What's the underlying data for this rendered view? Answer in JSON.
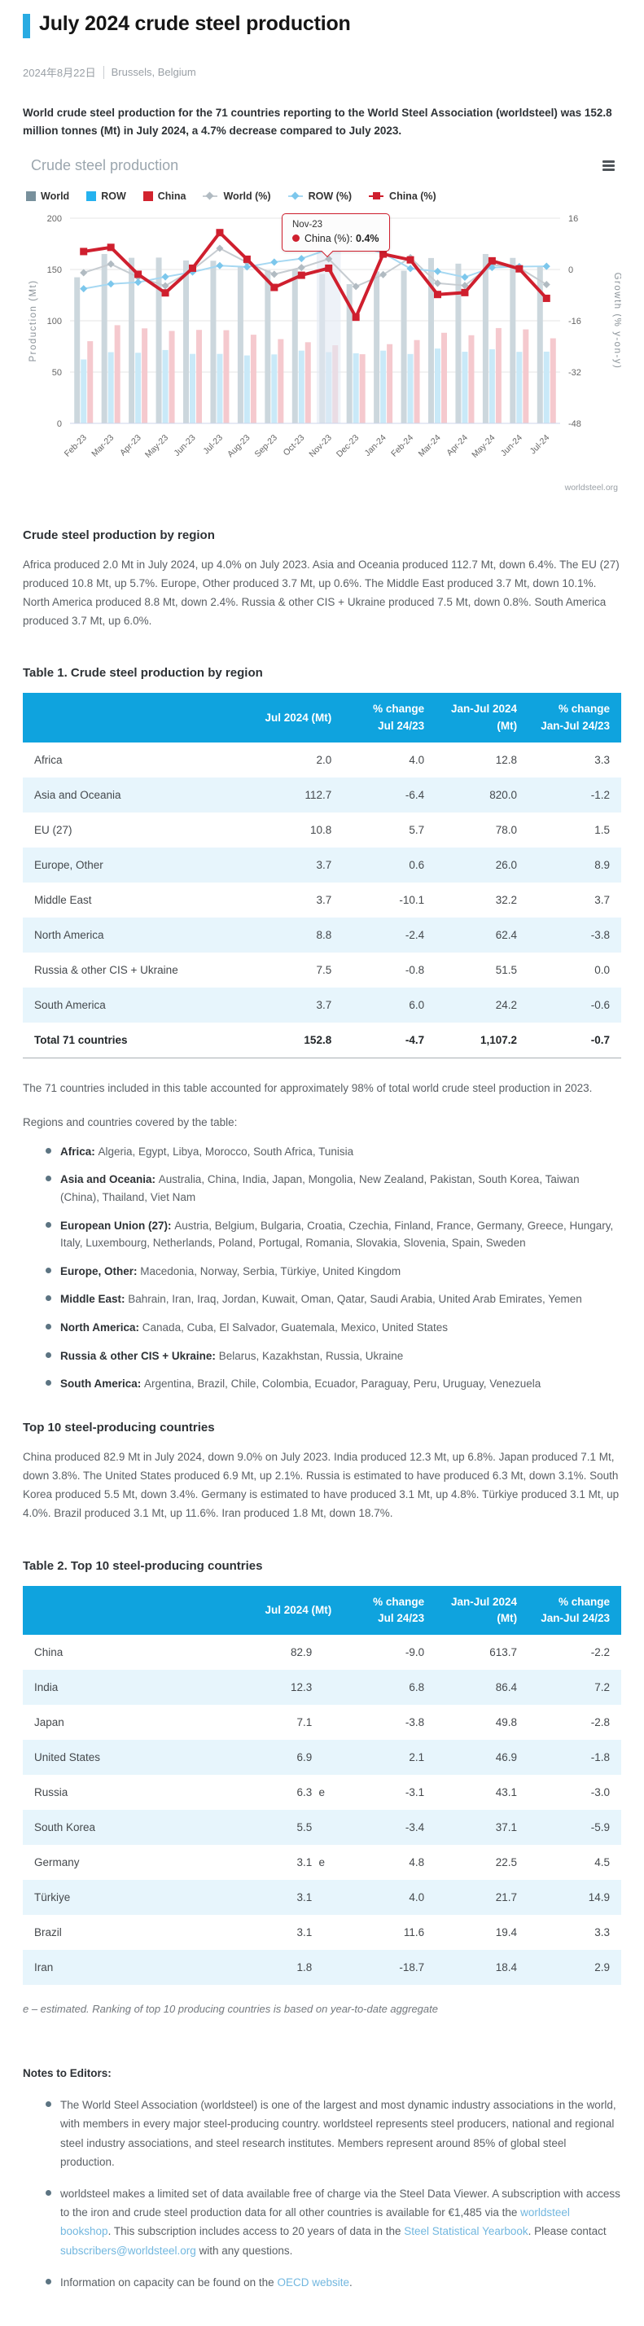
{
  "header": {
    "title": "July 2024 crude steel production",
    "date": "2024年8月22日",
    "location": "Brussels, Belgium",
    "accent_color": "#29abe2"
  },
  "intro": "World crude steel production for the 71 countries reporting to the World Steel Association (worldsteel) was 152.8 million tonnes (Mt) in July 2024, a 4.7% decrease compared to July 2023.",
  "chart_data": {
    "type": "combo-bar-line",
    "title": "Crude steel production",
    "x": [
      "Feb-23",
      "Mar-23",
      "Apr-23",
      "May-23",
      "Jun-23",
      "Jul-23",
      "Aug-23",
      "Sep-23",
      "Oct-23",
      "Nov-23",
      "Dec-23",
      "Jan-24",
      "Feb-24",
      "Mar-24",
      "Apr-24",
      "May-24",
      "Jun-24",
      "Jul-24"
    ],
    "series": [
      {
        "name": "World",
        "kind": "bar",
        "axis": "left",
        "color": "#78909c",
        "fill": "#ccd7dd",
        "values": [
          142.4,
          165.1,
          161.4,
          161.6,
          158.8,
          158.5,
          152.6,
          149.3,
          150.0,
          145.5,
          135.7,
          148.1,
          148.8,
          161.2,
          155.7,
          165.1,
          161.3,
          152.8
        ]
      },
      {
        "name": "ROW",
        "kind": "bar",
        "axis": "left",
        "color": "#25b2ef",
        "fill": "#c9e9f8",
        "values": [
          62.3,
          69.4,
          68.8,
          71.5,
          67.7,
          67.7,
          66.2,
          67.2,
          70.9,
          69.4,
          68.3,
          70.9,
          67.6,
          72.9,
          69.8,
          72.2,
          69.7,
          69.9
        ]
      },
      {
        "name": "China",
        "kind": "bar",
        "axis": "left",
        "color": "#d2232e",
        "fill": "#f5c9ce",
        "values": [
          80.1,
          95.7,
          92.6,
          90.1,
          91.1,
          90.8,
          86.4,
          82.1,
          79.1,
          76.1,
          67.4,
          77.2,
          81.2,
          88.3,
          85.9,
          92.9,
          91.6,
          82.9
        ]
      },
      {
        "name": "World (%)",
        "kind": "line",
        "axis": "right",
        "color": "#c6ccd1",
        "marker": "#b1bbc2",
        "marker_shape": "diamond",
        "width": 2,
        "values": [
          -1.0,
          1.7,
          -2.4,
          -5.1,
          -0.1,
          6.6,
          2.2,
          -1.5,
          0.6,
          3.3,
          -5.3,
          -1.6,
          3.7,
          -4.3,
          -5.0,
          1.5,
          0.5,
          -4.7
        ]
      },
      {
        "name": "ROW (%)",
        "kind": "line",
        "axis": "right",
        "color": "#a6d8f2",
        "marker": "#7cc7ec",
        "marker_shape": "diamond",
        "width": 2,
        "values": [
          -6.0,
          -4.5,
          -4.0,
          -2.3,
          -0.8,
          1.2,
          0.8,
          2.3,
          3.4,
          6.3,
          7.4,
          5.1,
          0.3,
          -0.6,
          -2.4,
          0.6,
          0.9,
          1.0
        ]
      },
      {
        "name": "China (%)",
        "kind": "line",
        "axis": "right",
        "color": "#cf1f2e",
        "marker": "#cf1f2e",
        "marker_shape": "square",
        "width": 4,
        "values": [
          5.6,
          6.9,
          -1.5,
          -7.3,
          0.4,
          11.5,
          3.2,
          -5.6,
          -1.8,
          0.4,
          -14.9,
          4.8,
          3.0,
          -7.8,
          -7.2,
          2.7,
          0.2,
          -9.0
        ]
      }
    ],
    "y_left": {
      "title": "Production (Mt)",
      "min": 0,
      "max": 200,
      "ticks": [
        0,
        50,
        100,
        150,
        200
      ]
    },
    "y_right": {
      "title": "Growth (% y-on-y)",
      "min": -48,
      "max": 16,
      "ticks": [
        -48,
        -32,
        -16,
        0,
        16
      ]
    },
    "highlight_index": 9,
    "tooltip": {
      "title": "Nov-23",
      "series": "China (%):",
      "value": "0.4%"
    },
    "watermark": "worldsteel.org",
    "legend_position": "top"
  },
  "region_section": {
    "heading": "Crude steel production by region",
    "paragraph": "Africa produced 2.0 Mt in July 2024, up 4.0% on July 2023. Asia and Oceania produced 112.7 Mt, down 6.4%. The EU (27) produced 10.8 Mt, up 5.7%. Europe, Other produced 3.7 Mt, up 0.6%. The Middle East produced 3.7 Mt, down 10.1%. North America produced 8.8 Mt, down 2.4%. Russia & other CIS + Ukraine produced 7.5 Mt, down 0.8%. South America produced 3.7 Mt, up 6.0%."
  },
  "table1": {
    "caption": "Table 1. Crude steel production by region",
    "columns": [
      "",
      "Jul 2024 (Mt)",
      "% change Jul 24/23",
      "Jan-Jul 2024 (Mt)",
      "% change Jan-Jul 24/23"
    ],
    "has_flags": false,
    "rows": [
      {
        "name": "Africa",
        "values": [
          "2.0",
          "4.0",
          "12.8",
          "3.3"
        ]
      },
      {
        "name": "Asia and Oceania",
        "values": [
          "112.7",
          "-6.4",
          "820.0",
          "-1.2"
        ]
      },
      {
        "name": "EU (27)",
        "values": [
          "10.8",
          "5.7",
          "78.0",
          "1.5"
        ]
      },
      {
        "name": "Europe, Other",
        "values": [
          "3.7",
          "0.6",
          "26.0",
          "8.9"
        ]
      },
      {
        "name": "Middle East",
        "values": [
          "3.7",
          "-10.1",
          "32.2",
          "3.7"
        ]
      },
      {
        "name": "North America",
        "values": [
          "8.8",
          "-2.4",
          "62.4",
          "-3.8"
        ]
      },
      {
        "name": "Russia & other CIS + Ukraine",
        "values": [
          "7.5",
          "-0.8",
          "51.5",
          "0.0"
        ]
      },
      {
        "name": "South America",
        "values": [
          "3.7",
          "6.0",
          "24.2",
          "-0.6"
        ]
      },
      {
        "name": "Total 71 countries",
        "bold": true,
        "values": [
          "152.8",
          "-4.7",
          "1,107.2",
          "-0.7"
        ]
      }
    ],
    "footnote": "The 71 countries included in this table accounted for approximately 98% of total world crude steel production in 2023.",
    "regions_intro": "Regions and countries covered by the table:"
  },
  "region_list": [
    {
      "label": "Africa:",
      "text": "Algeria, Egypt, Libya, Morocco, South Africa, Tunisia"
    },
    {
      "label": "Asia and Oceania:",
      "text": "Australia, China, India, Japan, Mongolia, New Zealand, Pakistan, South Korea, Taiwan (China), Thailand, Viet Nam"
    },
    {
      "label": "European Union (27):",
      "text": "Austria, Belgium, Bulgaria, Croatia, Czechia, Finland, France, Germany, Greece, Hungary, Italy, Luxembourg, Netherlands, Poland, Portugal, Romania, Slovakia, Slovenia, Spain, Sweden"
    },
    {
      "label": "Europe, Other:",
      "text": "Macedonia, Norway, Serbia, Türkiye, United Kingdom"
    },
    {
      "label": "Middle East:",
      "text": "Bahrain, Iran, Iraq, Jordan, Kuwait, Oman, Qatar, Saudi Arabia, United Arab Emirates, Yemen"
    },
    {
      "label": "North America:",
      "text": "Canada, Cuba, El Salvador, Guatemala, Mexico, United States"
    },
    {
      "label": "Russia & other CIS + Ukraine:",
      "text": "Belarus, Kazakhstan, Russia, Ukraine"
    },
    {
      "label": "South America:",
      "text": "Argentina, Brazil, Chile, Colombia, Ecuador, Paraguay, Peru, Uruguay, Venezuela"
    }
  ],
  "top10_section": {
    "heading": "Top 10 steel-producing countries",
    "paragraph": "China produced 82.9 Mt in July 2024, down 9.0% on July 2023. India produced 12.3 Mt, up 6.8%. Japan produced 7.1 Mt, down 3.8%. The United States produced 6.9 Mt, up 2.1%. Russia is estimated to have produced 6.3 Mt, down 3.1%. South Korea produced 5.5 Mt, down 3.4%. Germany is estimated to have produced 3.1 Mt, up 4.8%. Türkiye produced 3.1 Mt, up 4.0%. Brazil produced 3.1 Mt, up 11.6%. Iran produced 1.8 Mt, down 18.7%."
  },
  "table2": {
    "caption": "Table 2. Top 10 steel-producing countries",
    "columns": [
      "",
      "Jul 2024 (Mt)",
      "% change Jul 24/23",
      "Jan-Jul 2024 (Mt)",
      "% change Jan-Jul 24/23"
    ],
    "has_flags": true,
    "rows": [
      {
        "name": "China",
        "values": [
          "82.9",
          "-9.0",
          "613.7",
          "-2.2"
        ],
        "flag": ""
      },
      {
        "name": "India",
        "values": [
          "12.3",
          "6.8",
          "86.4",
          "7.2"
        ],
        "flag": ""
      },
      {
        "name": "Japan",
        "values": [
          "7.1",
          "-3.8",
          "49.8",
          "-2.8"
        ],
        "flag": ""
      },
      {
        "name": "United States",
        "values": [
          "6.9",
          "2.1",
          "46.9",
          "-1.8"
        ],
        "flag": ""
      },
      {
        "name": "Russia",
        "values": [
          "6.3",
          "-3.1",
          "43.1",
          "-3.0"
        ],
        "flag": "e"
      },
      {
        "name": "South Korea",
        "values": [
          "5.5",
          "-3.4",
          "37.1",
          "-5.9"
        ],
        "flag": ""
      },
      {
        "name": "Germany",
        "values": [
          "3.1",
          "4.8",
          "22.5",
          "4.5"
        ],
        "flag": "e"
      },
      {
        "name": "Türkiye",
        "values": [
          "3.1",
          "4.0",
          "21.7",
          "14.9"
        ],
        "flag": ""
      },
      {
        "name": "Brazil",
        "values": [
          "3.1",
          "11.6",
          "19.4",
          "3.3"
        ],
        "flag": ""
      },
      {
        "name": "Iran",
        "values": [
          "1.8",
          "-18.7",
          "18.4",
          "2.9"
        ],
        "flag": ""
      }
    ],
    "note": "e – estimated. Ranking of top 10 producing countries is based on year-to-date aggregate"
  },
  "notes": {
    "heading": "Notes to Editors:",
    "items": [
      {
        "segments": [
          {
            "text": "The World Steel Association (worldsteel) is one of the largest and most dynamic industry associations in the world, with members in every major steel-producing country. worldsteel represents steel producers, national and regional steel industry associations, and steel research institutes. Members represent around 85% of global steel production."
          }
        ]
      },
      {
        "segments": [
          {
            "text": "worldsteel makes a limited set of data available free of charge via the Steel Data Viewer. A subscription with access to the iron and crude steel production data for all other countries is available for €1,485  via the "
          },
          {
            "text": "worldsteel bookshop",
            "link": true
          },
          {
            "text": ". This subscription includes access to 20 years of data in the "
          },
          {
            "text": "Steel Statistical Yearbook",
            "link": true
          },
          {
            "text": ". Please contact "
          },
          {
            "text": "subscribers@worldsteel.org",
            "link": true
          },
          {
            "text": " with any questions."
          }
        ]
      },
      {
        "segments": [
          {
            "text": "Information on capacity can be found on the "
          },
          {
            "text": "OECD website",
            "link": true
          },
          {
            "text": "."
          }
        ]
      }
    ]
  }
}
